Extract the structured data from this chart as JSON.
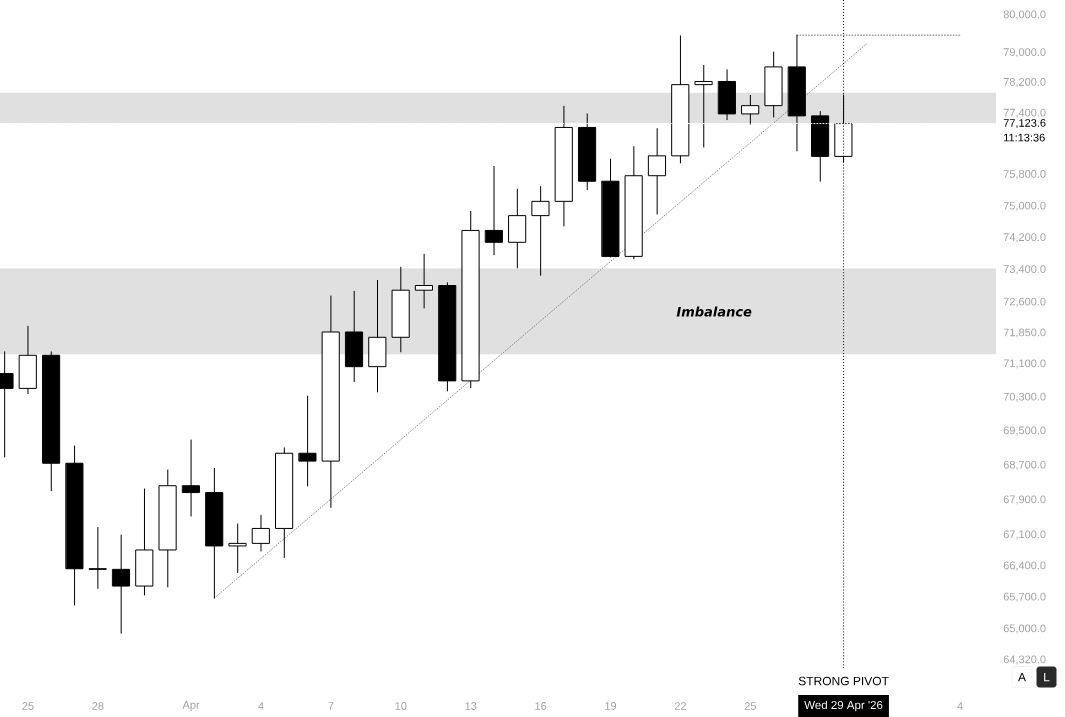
{
  "chart_data": {
    "type": "candlestick",
    "log": true,
    "xlim": [
      "2026-03-23T19:12",
      "2026-05-05T13:00"
    ],
    "ylim": [
      64320,
      80410
    ],
    "xticks": [
      {
        "value": "2026-03-25",
        "label": "25"
      },
      {
        "value": "2026-03-28",
        "label": "28"
      },
      {
        "value": "2026-04-01",
        "label": "Apr"
      },
      {
        "value": "2026-04-04",
        "label": "4"
      },
      {
        "value": "2026-04-07",
        "label": "7"
      },
      {
        "value": "2026-04-10",
        "label": "10"
      },
      {
        "value": "2026-04-13",
        "label": "13"
      },
      {
        "value": "2026-04-16",
        "label": "16"
      },
      {
        "value": "2026-04-19",
        "label": "19"
      },
      {
        "value": "2026-04-22",
        "label": "22"
      },
      {
        "value": "2026-04-25",
        "label": "25"
      },
      {
        "value": "2026-05-04",
        "label": "4"
      }
    ],
    "yticks": [
      {
        "value": 80000,
        "label": "80,000.0"
      },
      {
        "value": 79000,
        "label": "79,000.0"
      },
      {
        "value": 78200,
        "label": "78,200.0"
      },
      {
        "value": 77400,
        "label": "77,400.0"
      },
      {
        "value": 75800,
        "label": "75,800.0"
      },
      {
        "value": 75000,
        "label": "75,000.0"
      },
      {
        "value": 74200,
        "label": "74,200.0"
      },
      {
        "value": 73400,
        "label": "73,400.0"
      },
      {
        "value": 72600,
        "label": "72,600.0"
      },
      {
        "value": 71850,
        "label": "71,850.0"
      },
      {
        "value": 71100,
        "label": "71,100.0"
      },
      {
        "value": 70300,
        "label": "70,300.0"
      },
      {
        "value": 69500,
        "label": "69,500.0"
      },
      {
        "value": 68700,
        "label": "68,700.0"
      },
      {
        "value": 67900,
        "label": "67,900.0"
      },
      {
        "value": 67100,
        "label": "67,100.0"
      },
      {
        "value": 66400,
        "label": "66,400.0"
      },
      {
        "value": 65700,
        "label": "65,700.0"
      },
      {
        "value": 65000,
        "label": "65,000.0"
      },
      {
        "value": 64320,
        "label": "64,320.0"
      }
    ],
    "series": [
      {
        "type": "line",
        "color": "#808080",
        "line_style": "dotted",
        "x": [
          "2026-04-02",
          "2026-04-30"
        ],
        "values": [
          65680,
          79240
        ]
      },
      {
        "type": "line",
        "color": "#606060",
        "line_style": "dotted",
        "x": [
          "2026-04-27",
          "2026-05-04"
        ],
        "values": [
          79470,
          79470
        ]
      },
      {
        "color": "#000000",
        "x": [
          "2026-03-24",
          "2026-03-25",
          "2026-03-26",
          "2026-03-27",
          "2026-03-28",
          "2026-03-29",
          "2026-03-30",
          "2026-03-31",
          "2026-04-01",
          "2026-04-02",
          "2026-04-03",
          "2026-04-04",
          "2026-04-05",
          "2026-04-06",
          "2026-04-07",
          "2026-04-08",
          "2026-04-09",
          "2026-04-10",
          "2026-04-11",
          "2026-04-12",
          "2026-04-13",
          "2026-04-14",
          "2026-04-15",
          "2026-04-16",
          "2026-04-17",
          "2026-04-18",
          "2026-04-19",
          "2026-04-20",
          "2026-04-21",
          "2026-04-22",
          "2026-04-23",
          "2026-04-24",
          "2026-04-25",
          "2026-04-26",
          "2026-04-27",
          "2026-04-28",
          "2026-04-29"
        ],
        "ohlc": [
          [
            70870,
            71390,
            68900,
            70510
          ],
          [
            70510,
            72010,
            70390,
            71310
          ],
          [
            71310,
            71390,
            68110,
            68750
          ],
          [
            68750,
            69150,
            65530,
            66340
          ],
          [
            66340,
            67270,
            65900,
            66320
          ],
          [
            66320,
            67100,
            64910,
            65950
          ],
          [
            65950,
            68150,
            65750,
            66760
          ],
          [
            66760,
            68590,
            65930,
            68230
          ],
          [
            68230,
            69290,
            67530,
            68070
          ],
          [
            68070,
            68630,
            65680,
            66850
          ],
          [
            66850,
            67350,
            66250,
            66910
          ],
          [
            66910,
            67550,
            66740,
            67250
          ],
          [
            67250,
            69110,
            66590,
            68980
          ],
          [
            68980,
            70330,
            68220,
            68800
          ],
          [
            68800,
            72750,
            67730,
            71870
          ],
          [
            71870,
            72870,
            70670,
            71030
          ],
          [
            71030,
            73140,
            70430,
            71740
          ],
          [
            71740,
            73460,
            71390,
            72890
          ],
          [
            72890,
            73790,
            72460,
            73010
          ],
          [
            73010,
            73080,
            70450,
            70690
          ],
          [
            70690,
            74870,
            70530,
            74380
          ],
          [
            74380,
            76020,
            73770,
            74090
          ],
          [
            74090,
            75430,
            73450,
            74760
          ],
          [
            74760,
            75500,
            73260,
            75120
          ],
          [
            75120,
            77580,
            74500,
            77020
          ],
          [
            77020,
            77380,
            75420,
            75640
          ],
          [
            75640,
            76200,
            73720,
            73740
          ],
          [
            73740,
            76530,
            73680,
            75780
          ],
          [
            75780,
            77000,
            74800,
            76290
          ],
          [
            76290,
            79460,
            76100,
            78150
          ],
          [
            78150,
            78660,
            76510,
            78230
          ],
          [
            78230,
            78550,
            77230,
            77380
          ],
          [
            77380,
            77860,
            77110,
            77590
          ],
          [
            77590,
            79010,
            77290,
            78620
          ],
          [
            78620,
            79470,
            76410,
            77330
          ],
          [
            77330,
            77440,
            75640,
            76280
          ],
          [
            76280,
            77880,
            76130,
            77123.6
          ]
        ]
      }
    ],
    "bands": [
      {
        "axis": "y",
        "from": 77140,
        "to": 77940,
        "color": "#e0e0e0"
      },
      {
        "axis": "y",
        "from": 71330,
        "to": 73440,
        "color": "#e0e0e0",
        "label": "Imbalance"
      }
    ],
    "ref_lines": [
      {
        "axis": "y",
        "value": 77123.6,
        "label": "77,123.6",
        "color": "#ffffff",
        "line_style": "dotted"
      },
      {
        "axis": "x",
        "value": "2026-04-29",
        "label": "STRONG PIVOT",
        "color": "#000000",
        "line_style": "dotted"
      }
    ],
    "annotations": [
      "Wed 29 Apr '26",
      "11:13:36",
      "A",
      "L"
    ]
  }
}
